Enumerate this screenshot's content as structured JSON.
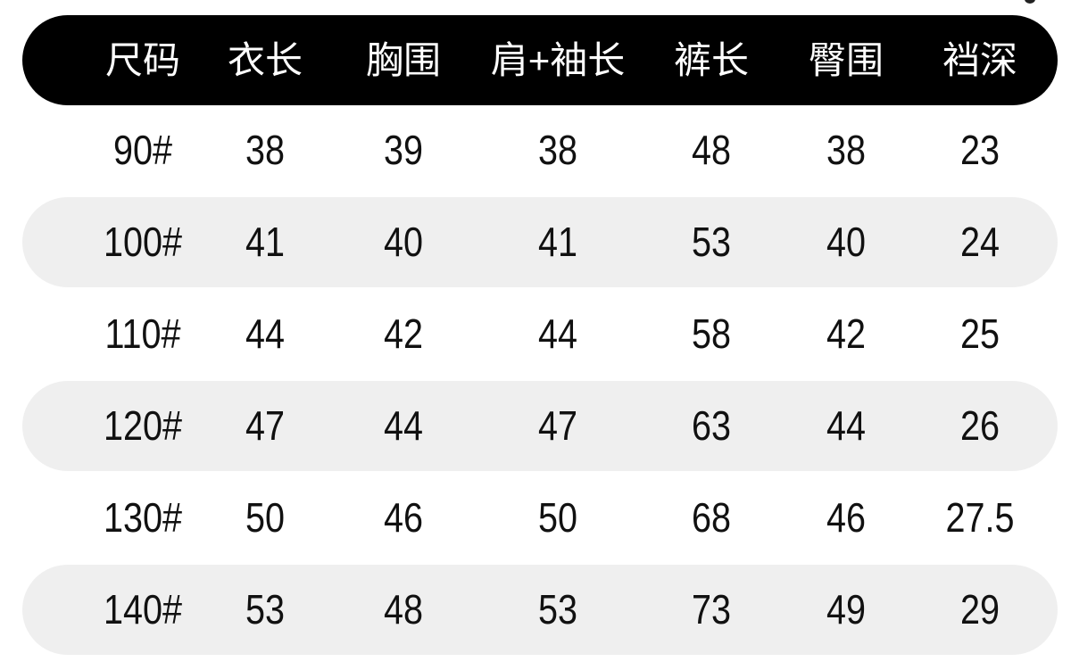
{
  "table": {
    "headers": [
      "尺码",
      "衣长",
      "胸围",
      "肩+袖长",
      "裤长",
      "臀围",
      "裆深"
    ],
    "rows": [
      [
        "90#",
        "38",
        "39",
        "38",
        "48",
        "38",
        "23"
      ],
      [
        "100#",
        "41",
        "40",
        "41",
        "53",
        "40",
        "24"
      ],
      [
        "110#",
        "44",
        "42",
        "44",
        "58",
        "42",
        "25"
      ],
      [
        "120#",
        "47",
        "44",
        "47",
        "63",
        "44",
        "26"
      ],
      [
        "130#",
        "50",
        "46",
        "50",
        "68",
        "46",
        "27.5"
      ],
      [
        "140#",
        "53",
        "48",
        "53",
        "73",
        "49",
        "29"
      ]
    ]
  },
  "colors": {
    "header_bg": "#000000",
    "header_text": "#ffffff",
    "stripe": "#efefef",
    "text": "#111111"
  }
}
